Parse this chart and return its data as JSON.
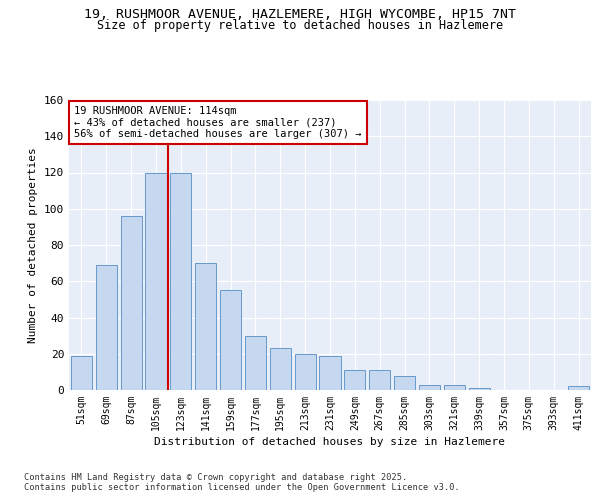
{
  "title_line1": "19, RUSHMOOR AVENUE, HAZLEMERE, HIGH WYCOMBE, HP15 7NT",
  "title_line2": "Size of property relative to detached houses in Hazlemere",
  "xlabel": "Distribution of detached houses by size in Hazlemere",
  "ylabel": "Number of detached properties",
  "categories": [
    "51sqm",
    "69sqm",
    "87sqm",
    "105sqm",
    "123sqm",
    "141sqm",
    "159sqm",
    "177sqm",
    "195sqm",
    "213sqm",
    "231sqm",
    "249sqm",
    "267sqm",
    "285sqm",
    "303sqm",
    "321sqm",
    "339sqm",
    "357sqm",
    "375sqm",
    "393sqm",
    "411sqm"
  ],
  "values": [
    19,
    69,
    96,
    120,
    120,
    70,
    55,
    30,
    23,
    20,
    19,
    11,
    11,
    8,
    3,
    3,
    1,
    0,
    0,
    0,
    2
  ],
  "bar_color": "#c5d8f0",
  "bar_edge_color": "#6699cc",
  "vline_index": 3,
  "vline_color": "#cc0000",
  "ylim": [
    0,
    160
  ],
  "yticks": [
    0,
    20,
    40,
    60,
    80,
    100,
    120,
    140,
    160
  ],
  "annotation_text": "19 RUSHMOOR AVENUE: 114sqm\n← 43% of detached houses are smaller (237)\n56% of semi-detached houses are larger (307) →",
  "annotation_box_edgecolor": "#cc0000",
  "footer_text": "Contains HM Land Registry data © Crown copyright and database right 2025.\nContains public sector information licensed under the Open Government Licence v3.0.",
  "bg_color": "#ffffff",
  "plot_bg_color": "#e8eef8"
}
